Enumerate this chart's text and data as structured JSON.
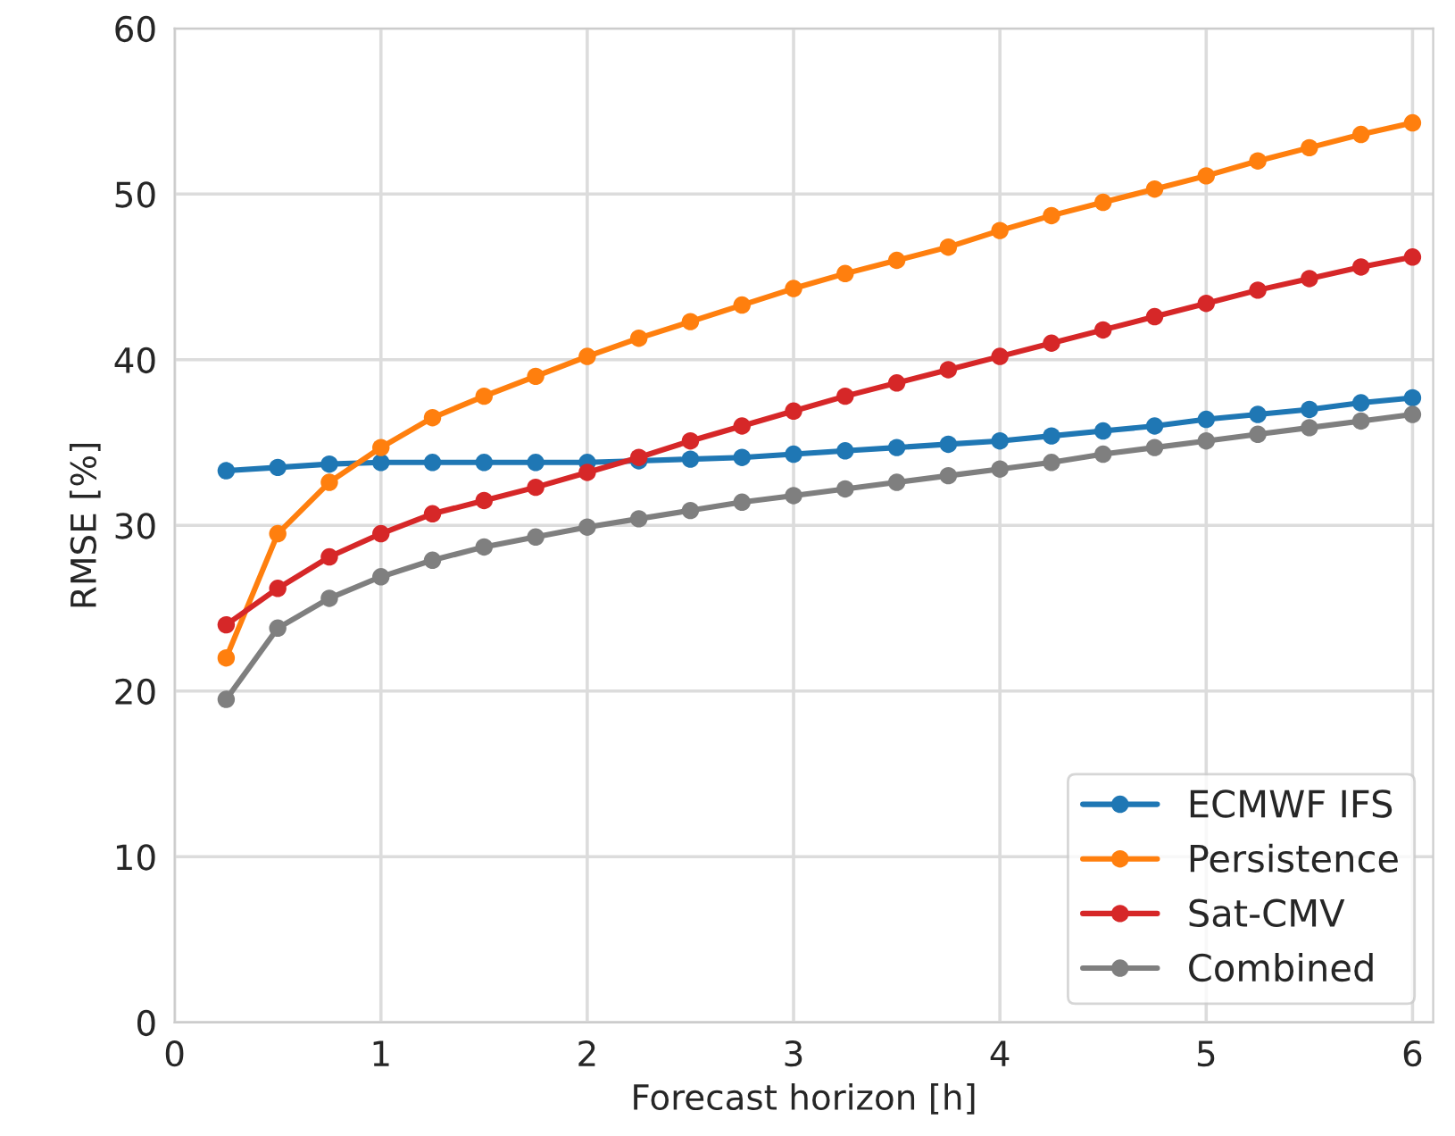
{
  "chart_data": {
    "type": "line",
    "xlabel": "Forecast horizon [h]",
    "ylabel": "RMSE [%]",
    "x": [
      0.25,
      0.5,
      0.75,
      1,
      1.25,
      1.5,
      1.75,
      2,
      2.25,
      2.5,
      2.75,
      3,
      3.25,
      3.5,
      3.75,
      4,
      4.25,
      4.5,
      4.75,
      5,
      5.25,
      5.5,
      5.75,
      6
    ],
    "series": [
      {
        "name": "ECMWF IFS",
        "color": "#1f77b4",
        "values": [
          33.3,
          33.5,
          33.7,
          33.8,
          33.8,
          33.8,
          33.8,
          33.8,
          33.9,
          34.0,
          34.1,
          34.3,
          34.5,
          34.7,
          34.9,
          35.1,
          35.4,
          35.7,
          36.0,
          36.4,
          36.7,
          37.0,
          37.4,
          37.7
        ]
      },
      {
        "name": "Persistence",
        "color": "#ff7f0e",
        "values": [
          22.0,
          29.5,
          32.6,
          34.7,
          36.5,
          37.8,
          39.0,
          40.2,
          41.3,
          42.3,
          43.3,
          44.3,
          45.2,
          46.0,
          46.8,
          47.8,
          48.7,
          49.5,
          50.3,
          51.1,
          52.0,
          52.8,
          53.6,
          54.3
        ]
      },
      {
        "name": "Sat-CMV",
        "color": "#d62728",
        "values": [
          24.0,
          26.2,
          28.1,
          29.5,
          30.7,
          31.5,
          32.3,
          33.2,
          34.1,
          35.1,
          36.0,
          36.9,
          37.8,
          38.6,
          39.4,
          40.2,
          41.0,
          41.8,
          42.6,
          43.4,
          44.2,
          44.9,
          45.6,
          46.2
        ]
      },
      {
        "name": "Combined",
        "color": "#7f7f7f",
        "values": [
          19.5,
          23.8,
          25.6,
          26.9,
          27.9,
          28.7,
          29.3,
          29.9,
          30.4,
          30.9,
          31.4,
          31.8,
          32.2,
          32.6,
          33.0,
          33.4,
          33.8,
          34.3,
          34.7,
          35.1,
          35.5,
          35.9,
          36.3,
          36.7
        ]
      }
    ],
    "xlim": [
      0,
      6.1
    ],
    "xticks": [
      0,
      1,
      2,
      3,
      4,
      5,
      6
    ],
    "ylim": [
      0,
      60
    ],
    "yticks": [
      0,
      10,
      20,
      30,
      40,
      50,
      60
    ],
    "grid": true,
    "legend": "lower right",
    "marker": "circle",
    "line_style": "solid"
  }
}
